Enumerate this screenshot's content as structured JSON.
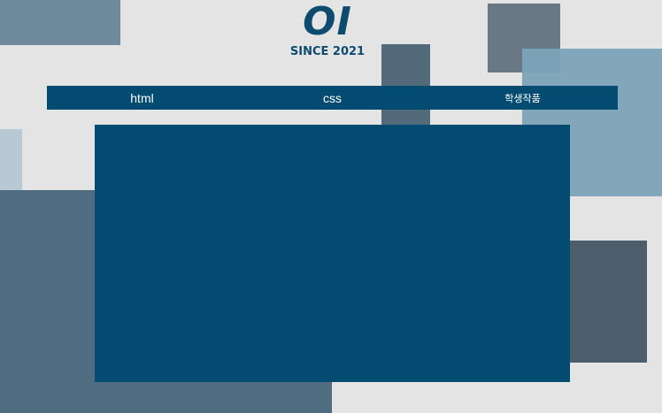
{
  "logo": {
    "mark": "OI",
    "since": "SINCE 2021"
  },
  "nav": {
    "items": [
      {
        "label": "html"
      },
      {
        "label": "css"
      },
      {
        "label": "학생작품"
      }
    ]
  },
  "colors": {
    "primary": "#044b72",
    "background": "#e4e4e4"
  }
}
